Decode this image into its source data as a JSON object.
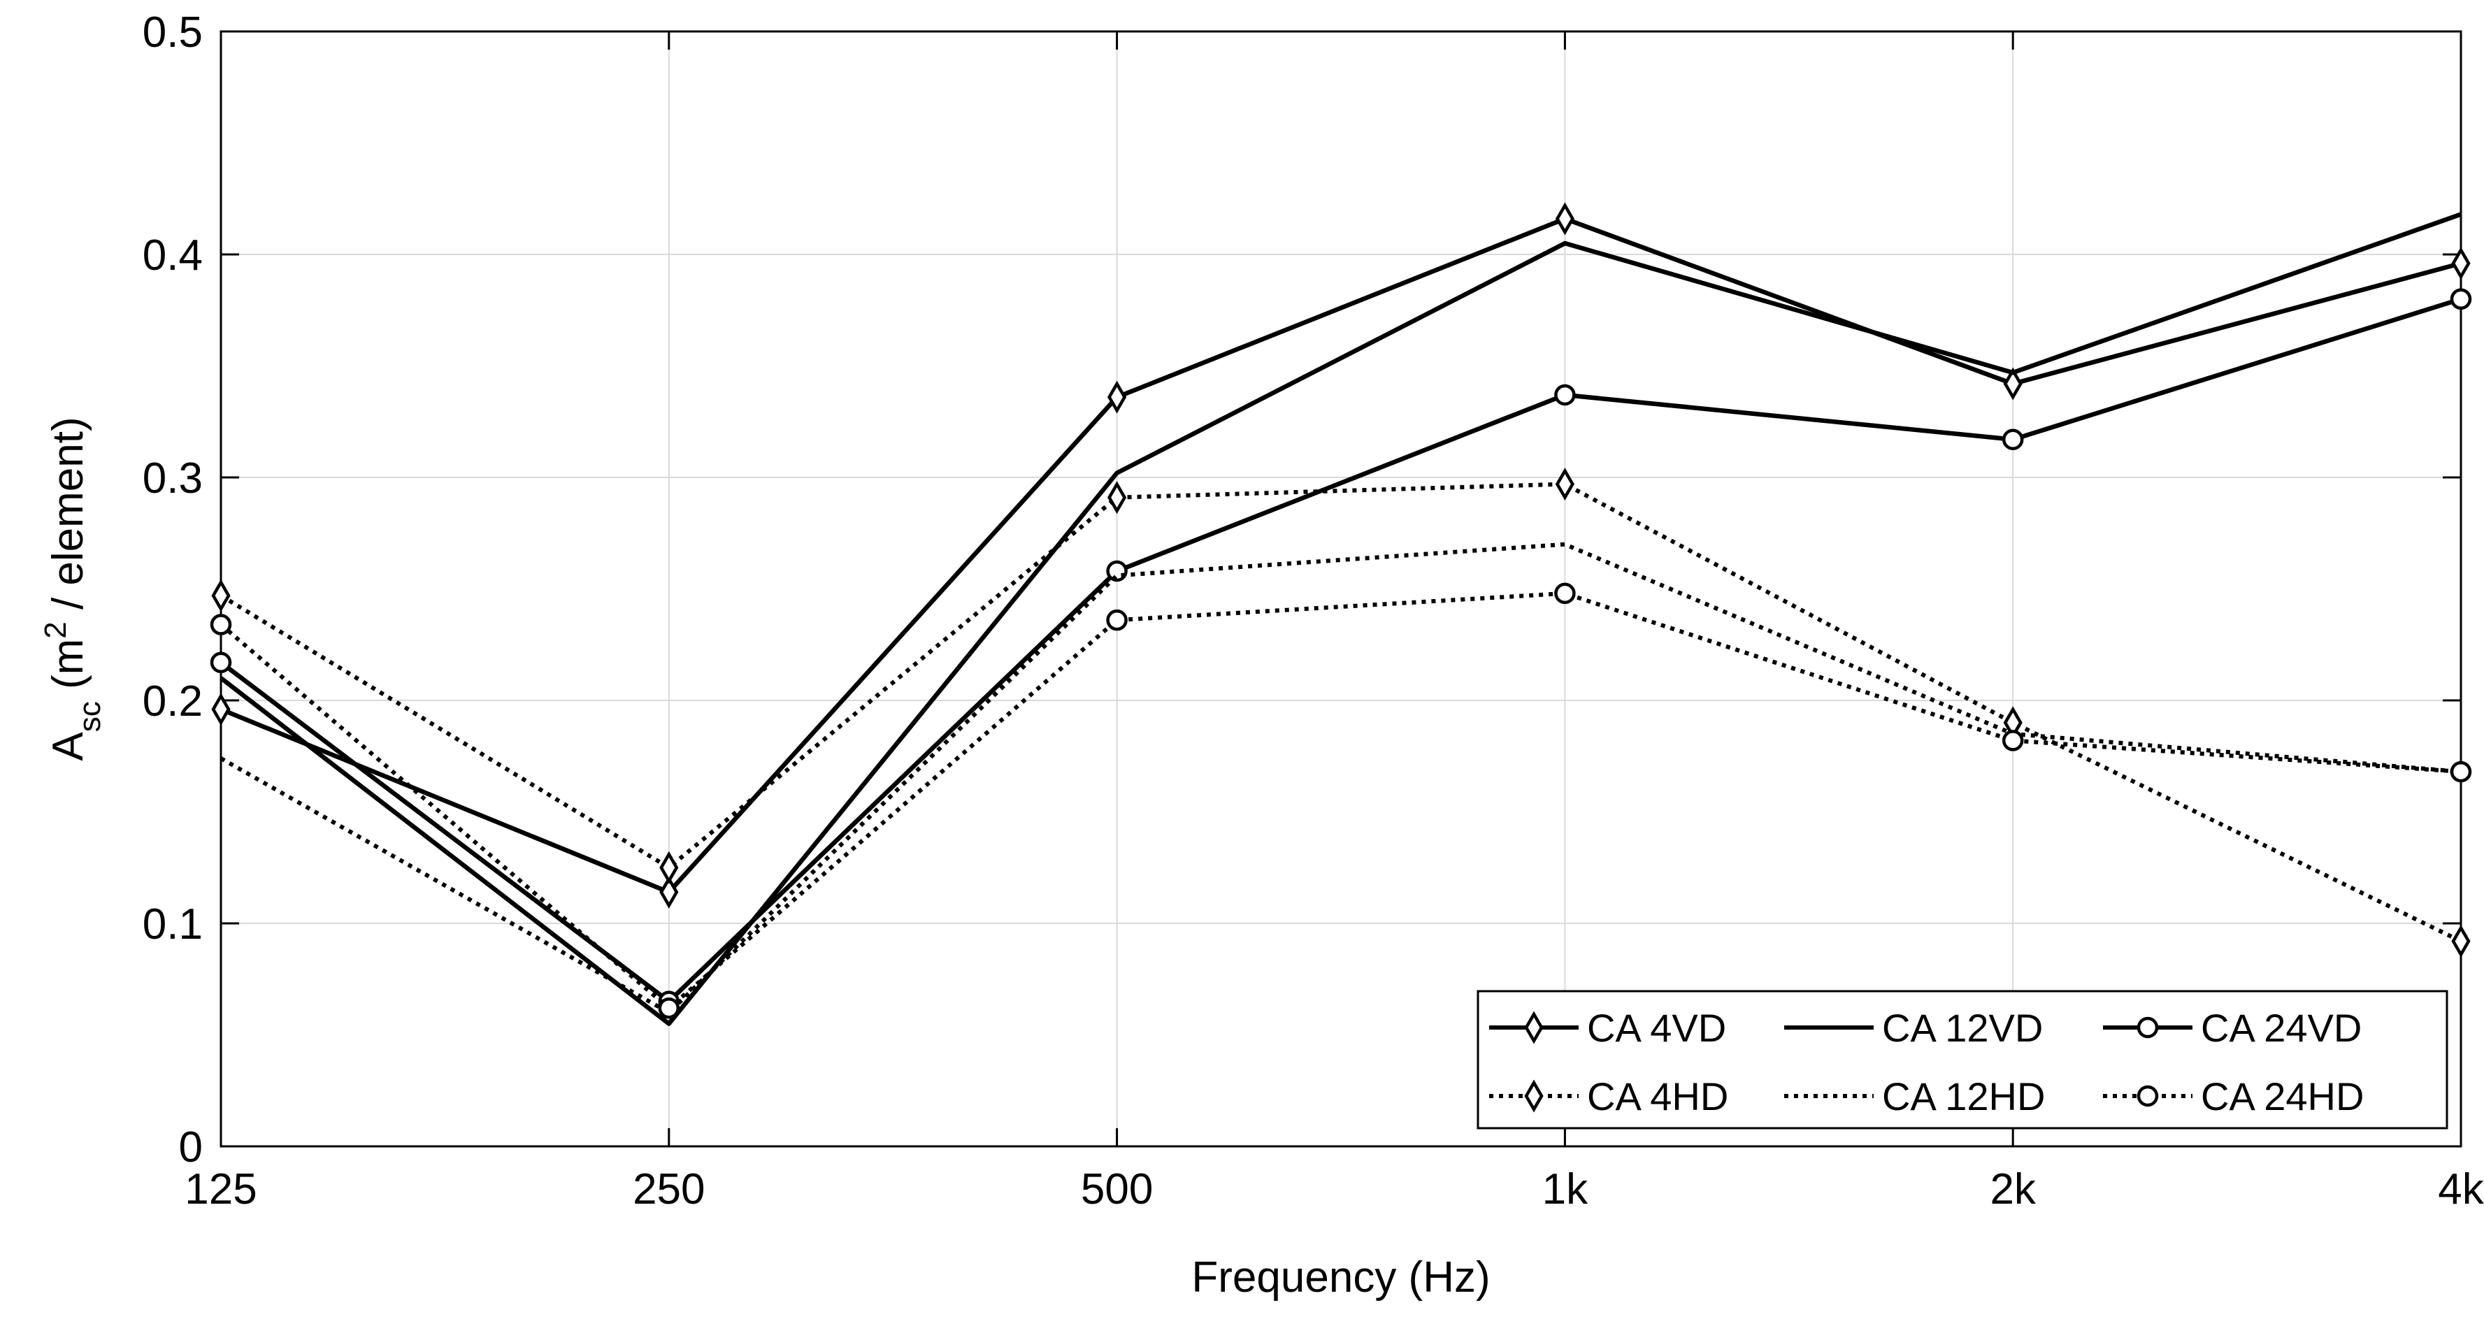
{
  "chart_data": {
    "type": "line",
    "title": "",
    "xlabel": "Frequency (Hz)",
    "ylabel": {
      "base": "A",
      "subscript": "sc",
      "open": " (m",
      "superscript": "2",
      "close": " / element)"
    },
    "categories": [
      "125",
      "250",
      "500",
      "1k",
      "2k",
      "4k"
    ],
    "ylim": [
      0,
      0.5
    ],
    "yticks": [
      "0",
      "0.1",
      "0.2",
      "0.3",
      "0.4",
      "0.5"
    ],
    "grid": true,
    "legend_position": "bottom-right",
    "series": [
      {
        "name": "CA 4VD",
        "style": "solid",
        "marker": "diamond",
        "values": [
          0.196,
          0.114,
          0.336,
          0.416,
          0.342,
          0.396
        ]
      },
      {
        "name": "CA 12VD",
        "style": "solid",
        "marker": "none",
        "values": [
          0.21,
          0.055,
          0.302,
          0.405,
          0.347,
          0.418
        ]
      },
      {
        "name": "CA 24VD",
        "style": "solid",
        "marker": "circle",
        "values": [
          0.217,
          0.065,
          0.258,
          0.337,
          0.317,
          0.38
        ]
      },
      {
        "name": "CA 4HD",
        "style": "dotted",
        "marker": "diamond",
        "values": [
          0.247,
          0.125,
          0.291,
          0.297,
          0.19,
          0.092
        ]
      },
      {
        "name": "CA 12HD",
        "style": "dotted",
        "marker": "none",
        "values": [
          0.174,
          0.06,
          0.256,
          0.27,
          0.185,
          0.168
        ]
      },
      {
        "name": "CA 24HD",
        "style": "dotted",
        "marker": "circle",
        "values": [
          0.234,
          0.062,
          0.236,
          0.248,
          0.182,
          0.168
        ]
      }
    ]
  },
  "colors": {
    "line": "#000000",
    "grid": "#d9d9d9",
    "background": "#ffffff"
  }
}
